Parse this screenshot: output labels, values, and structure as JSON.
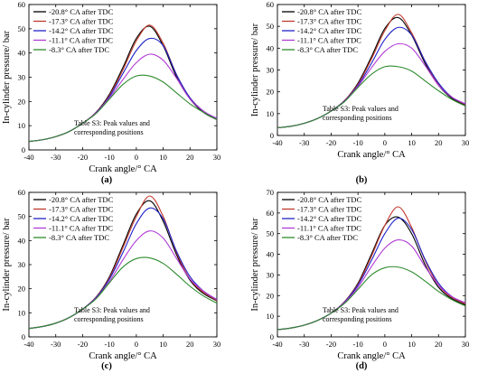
{
  "figure": {
    "series_names": [
      "-20.8° CA after TDC",
      "-17.3° CA after TDC",
      "-14.2° CA after TDC",
      "-11.1° CA after TDC",
      "-8.3° CA after TDC"
    ],
    "colors": [
      "#000000",
      "#c0392b",
      "#1f22c8",
      "#b13bd6",
      "#2e8b2e"
    ]
  },
  "chart_data": [
    {
      "type": "line",
      "panel_label": "(a)",
      "xlabel": "Crank angle/° CA",
      "ylabel": "In-cylinder pressure/ bar",
      "xlim": [
        -40,
        30
      ],
      "ylim": [
        0,
        60
      ],
      "xticks": [
        -40,
        -30,
        -20,
        -10,
        0,
        10,
        20,
        30
      ],
      "yticks": [
        0,
        10,
        20,
        30,
        40,
        50,
        60
      ],
      "annotation": [
        "Table S3: Peak values and",
        "corresponding positions"
      ],
      "legend_position": "top-left",
      "x": [
        -40,
        -35,
        -30,
        -25,
        -20,
        -15,
        -10,
        -5,
        0,
        5,
        10,
        15,
        20,
        25,
        30
      ],
      "series": [
        {
          "name": "-20.8° CA after TDC",
          "values": [
            3.5,
            4.2,
            5.5,
            7.6,
            11,
            15.5,
            23,
            34,
            46,
            51,
            43,
            30,
            21,
            15.5,
            12.5
          ]
        },
        {
          "name": "-17.3° CA after TDC",
          "values": [
            3.5,
            4.2,
            5.5,
            7.6,
            11,
            15.4,
            22.5,
            33,
            45,
            51.5,
            44,
            31,
            21.5,
            16,
            12.8
          ]
        },
        {
          "name": "-14.2° CA after TDC",
          "values": [
            3.5,
            4.2,
            5.5,
            7.6,
            11,
            15.3,
            22,
            31.5,
            41,
            46,
            43,
            31,
            21.5,
            16,
            13
          ]
        },
        {
          "name": "-11.1° CA after TDC",
          "values": [
            3.5,
            4.2,
            5.5,
            7.6,
            11,
            15.2,
            21.5,
            29,
            36,
            39.5,
            37,
            29.5,
            21,
            16,
            13
          ]
        },
        {
          "name": "-8.3° CA after TDC",
          "values": [
            3.5,
            4.2,
            5.5,
            7.6,
            11,
            15,
            21,
            27,
            30.5,
            30.5,
            28,
            23.5,
            19,
            15.5,
            12.5
          ]
        }
      ]
    },
    {
      "type": "line",
      "panel_label": "(b)",
      "xlabel": "Crank angle/° CA",
      "ylabel": "In-cylinder pressure/ bar",
      "xlim": [
        -40,
        30
      ],
      "ylim": [
        0,
        60
      ],
      "xticks": [
        -40,
        -30,
        -20,
        -10,
        0,
        10,
        20,
        30
      ],
      "yticks": [
        0,
        10,
        20,
        30,
        40,
        50,
        60
      ],
      "annotation": [
        "Table S3: Peak values and",
        "corresponding positions"
      ],
      "legend_position": "top-left",
      "x": [
        -40,
        -35,
        -30,
        -25,
        -20,
        -15,
        -10,
        -5,
        0,
        5,
        10,
        15,
        20,
        25,
        30
      ],
      "series": [
        {
          "name": "-20.8° CA after TDC",
          "values": [
            3.5,
            4.2,
            5.6,
            7.8,
            11.2,
            16,
            24,
            36,
            49,
            54,
            46,
            33,
            23,
            17,
            14
          ]
        },
        {
          "name": "-17.3° CA after TDC",
          "values": [
            3.5,
            4.2,
            5.6,
            7.8,
            11.2,
            16,
            23.5,
            35,
            48,
            55.5,
            47,
            34,
            23.5,
            17.5,
            14.2
          ]
        },
        {
          "name": "-14.2° CA after TDC",
          "values": [
            3.5,
            4.2,
            5.6,
            7.8,
            11.2,
            15.8,
            23,
            33,
            44,
            49.5,
            46,
            34,
            24,
            17.5,
            14.5
          ]
        },
        {
          "name": "-11.1° CA after TDC",
          "values": [
            3.5,
            4.2,
            5.6,
            7.8,
            11.2,
            15.6,
            22.5,
            31,
            38.5,
            42,
            40,
            32,
            23,
            17.5,
            14.5
          ]
        },
        {
          "name": "-8.3° CA after TDC",
          "values": [
            3.5,
            4.2,
            5.6,
            7.8,
            11.2,
            15.5,
            22,
            28,
            31.5,
            31.5,
            29.5,
            25,
            20.5,
            16.5,
            13.5
          ]
        }
      ]
    },
    {
      "type": "line",
      "panel_label": "(c)",
      "xlabel": "Crank angle/° CA",
      "ylabel": "In-cylinder pressure/ bar",
      "xlim": [
        -40,
        30
      ],
      "ylim": [
        0,
        60
      ],
      "xticks": [
        -40,
        -30,
        -20,
        -10,
        0,
        10,
        20,
        30
      ],
      "yticks": [
        0,
        10,
        20,
        30,
        40,
        50,
        60
      ],
      "annotation": [
        "Table S3: Peak values and",
        "corresponding positions"
      ],
      "legend_position": "top-left",
      "x": [
        -40,
        -35,
        -30,
        -25,
        -20,
        -15,
        -10,
        -5,
        0,
        5,
        10,
        15,
        20,
        25,
        30
      ],
      "series": [
        {
          "name": "-20.8° CA after TDC",
          "values": [
            3.5,
            4.3,
            5.7,
            8,
            11.5,
            16.5,
            25,
            38,
            51,
            56.5,
            48,
            34,
            23.5,
            18,
            15
          ]
        },
        {
          "name": "-17.3° CA after TDC",
          "values": [
            3.5,
            4.3,
            5.7,
            8,
            11.5,
            16.5,
            24.5,
            37,
            50,
            58.5,
            50,
            35,
            24,
            18.5,
            15.2
          ]
        },
        {
          "name": "-14.2° CA after TDC",
          "values": [
            3.5,
            4.3,
            5.7,
            8,
            11.5,
            16.3,
            24,
            35,
            47,
            53.5,
            49,
            35.5,
            25,
            19,
            15.5
          ]
        },
        {
          "name": "-11.1° CA after TDC",
          "values": [
            3.5,
            4.3,
            5.7,
            8,
            11.5,
            16,
            23,
            32,
            40,
            44,
            41,
            32.5,
            24,
            19,
            15.5
          ]
        },
        {
          "name": "-8.3° CA after TDC",
          "values": [
            3.5,
            4.3,
            5.7,
            8,
            11.5,
            15.8,
            22.5,
            29,
            32.5,
            32.8,
            30.5,
            26,
            21,
            17,
            14
          ]
        }
      ]
    },
    {
      "type": "line",
      "panel_label": "(d)",
      "xlabel": "Crank angle/° CA",
      "ylabel": "In-cylinder pressure/ bar",
      "xlim": [
        -40,
        30
      ],
      "ylim": [
        0,
        70
      ],
      "xticks": [
        -40,
        -30,
        -20,
        -10,
        0,
        10,
        20,
        30
      ],
      "yticks": [
        0,
        10,
        20,
        30,
        40,
        50,
        60,
        70
      ],
      "annotation": [
        "Table S3: Peak values and",
        "corresponding positions"
      ],
      "legend_position": "top-left",
      "x": [
        -40,
        -35,
        -30,
        -25,
        -20,
        -15,
        -10,
        -5,
        0,
        5,
        10,
        15,
        20,
        25,
        30
      ],
      "series": [
        {
          "name": "-20.8° CA after TDC",
          "values": [
            3.5,
            4.3,
            5.7,
            8,
            11.5,
            17,
            26,
            40,
            54,
            58,
            50,
            35,
            24,
            18.5,
            15.5
          ]
        },
        {
          "name": "-17.3° CA after TDC",
          "values": [
            3.5,
            4.3,
            5.7,
            8,
            11.5,
            17,
            25.5,
            39,
            54,
            63,
            53,
            37,
            25,
            19,
            16
          ]
        },
        {
          "name": "-14.2° CA after TDC",
          "values": [
            3.5,
            4.3,
            5.7,
            8,
            11.5,
            16.8,
            25,
            37,
            50,
            57.5,
            52,
            37.5,
            26,
            19.5,
            16.5
          ]
        },
        {
          "name": "-11.1° CA after TDC",
          "values": [
            3.5,
            4.3,
            5.7,
            8,
            11.5,
            16.5,
            24,
            34,
            43,
            47,
            44,
            34,
            25,
            19.5,
            16.5
          ]
        },
        {
          "name": "-8.3° CA after TDC",
          "values": [
            3.5,
            4.3,
            5.7,
            8,
            11.5,
            16.2,
            23,
            30,
            33.5,
            33.8,
            31.5,
            27,
            22,
            18,
            15
          ]
        }
      ]
    }
  ]
}
